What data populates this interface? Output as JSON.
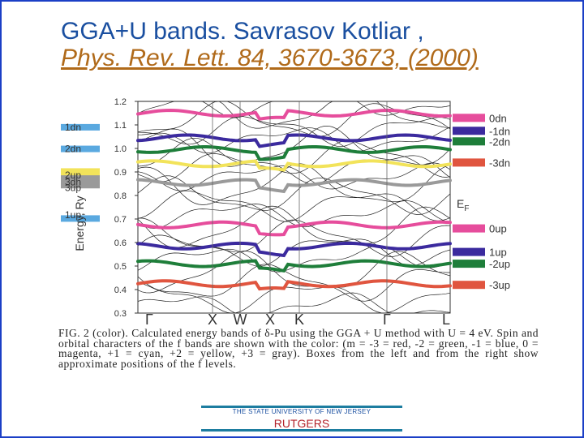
{
  "slide": {
    "title_line1": "GGA+U bands. Savrasov Kotliar ,",
    "title_line2": "Phys. Rev. Lett. 84, 3670-3673, (2000)"
  },
  "figure": {
    "ylabel": "Energy, Ry",
    "yticks": [
      "1.2",
      "1.1",
      "1.0",
      "0.9",
      "0.8",
      "0.7",
      "0.6",
      "0.5",
      "0.4",
      "0.3"
    ],
    "ytick_values": [
      1.2,
      1.1,
      1.0,
      0.9,
      0.8,
      0.7,
      0.6,
      0.5,
      0.4,
      0.3
    ],
    "xticks": [
      "Γ",
      "X",
      "W",
      "X",
      "K",
      "Γ",
      "L"
    ],
    "ef_label": "E",
    "ef_sub": "F",
    "left_labels": [
      {
        "text": "1dn",
        "value": 1.09
      },
      {
        "text": "2dn",
        "value": 0.998
      },
      {
        "text": "2up",
        "value": 0.886
      },
      {
        "text": "3dn",
        "value": 0.857
      },
      {
        "text": "3up",
        "value": 0.832
      },
      {
        "text": "1up",
        "value": 0.718
      }
    ],
    "left_boxes": [
      {
        "color": "#5aa9e0",
        "value": 1.09
      },
      {
        "color": "#5aa9e0",
        "value": 0.998
      },
      {
        "color": "#f2e35a",
        "value": 0.902
      },
      {
        "color": "#f2e35a",
        "value": 0.888
      },
      {
        "color": "#9a9a9a",
        "value": 0.872
      },
      {
        "color": "#9a9a9a",
        "value": 0.858
      },
      {
        "color": "#9a9a9a",
        "value": 0.844
      },
      {
        "color": "#5aa9e0",
        "value": 0.702
      }
    ],
    "right_legend": [
      {
        "text": "0dn",
        "color": "#e64d9c",
        "value": 1.13
      },
      {
        "text": "-1dn",
        "color": "#3b2a9e",
        "value": 1.075
      },
      {
        "text": "-2dn",
        "color": "#1e7e3a",
        "value": 1.03
      },
      {
        "text": "-3dn",
        "color": "#e0553f",
        "value": 0.94
      },
      {
        "text": "0up",
        "color": "#e64d9c",
        "value": 0.66
      },
      {
        "text": "1up",
        "color": "#3b2a9e",
        "value": 0.56
      },
      {
        "text": "-2up",
        "color": "#1e7e3a",
        "value": 0.51
      },
      {
        "text": "-3up",
        "color": "#e0553f",
        "value": 0.42
      }
    ],
    "colored_bands": [
      {
        "color": "#e0553f",
        "value": 0.425
      },
      {
        "color": "#1e7e3a",
        "value": 0.51
      },
      {
        "color": "#3b2a9e",
        "value": 0.585
      },
      {
        "color": "#e64d9c",
        "value": 0.675
      },
      {
        "color": "#1e7e3a",
        "value": 0.995
      },
      {
        "color": "#3b2a9e",
        "value": 1.045
      },
      {
        "color": "#e64d9c",
        "value": 1.15
      },
      {
        "color": "#f2e35a",
        "value": 0.935
      },
      {
        "color": "#9a9a9a",
        "value": 0.855
      }
    ],
    "caption": "FIG. 2 (color). Calculated energy bands of δ-Pu using the GGA + U method with U = 4 eV. Spin and orbital characters of the f bands are shown with the color: (m = -3 = red, -2 = green, -1 = blue, 0 = magenta, +1 = cyan, +2 = yellow, +3 = gray). Boxes from the left and from the right show approximate positions of the f levels."
  },
  "footer": {
    "university": "THE STATE UNIVERSITY OF NEW JERSEY",
    "name": "RUTGERS"
  }
}
